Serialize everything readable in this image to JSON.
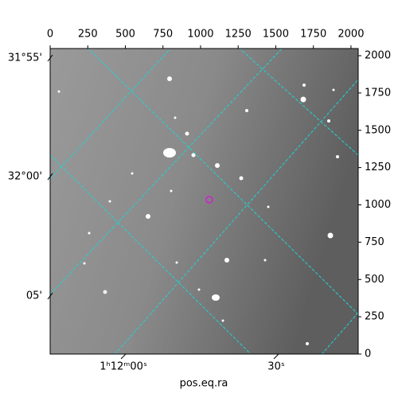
{
  "chart_data": {
    "type": "image",
    "x_label": "pos.eq.ra",
    "xlim": [
      0,
      2048
    ],
    "ylim": [
      0,
      2048
    ],
    "xticks": [
      0,
      250,
      500,
      750,
      1000,
      1250,
      1500,
      1750,
      2000
    ],
    "yticks": [
      0,
      250,
      500,
      750,
      1000,
      1250,
      1500,
      1750,
      2000
    ],
    "ra_ticks": [
      {
        "value": 487,
        "label": "1ʰ12ᵐ00ˢ"
      },
      {
        "value": 1503,
        "label": "30ˢ"
      }
    ],
    "dec_ticks": [
      {
        "value": 1984,
        "label": "31°55'"
      },
      {
        "value": 1189,
        "label": "32°00'"
      },
      {
        "value": 389,
        "label": "05'"
      }
    ]
  }
}
